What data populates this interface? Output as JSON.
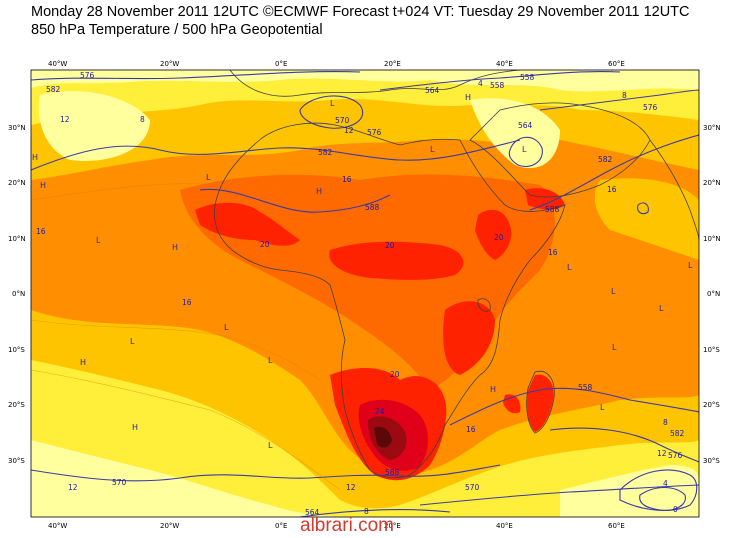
{
  "header": {
    "line1": "Monday 28 November 2011 12UTC ©ECMWF Forecast t+024 VT: Tuesday 29 November 2011 12UTC",
    "line2": "850 hPa Temperature / 500 hPa Geopotential"
  },
  "axes": {
    "top_lon": [
      "40°W",
      "20°W",
      "0°E",
      "20°E",
      "40°E",
      "60°E"
    ],
    "bottom_lon": [
      "40°W",
      "20°W",
      "0°E",
      "20°E",
      "40°E",
      "60°E"
    ],
    "lat": [
      "30°N",
      "20°N",
      "10°N",
      "0°N",
      "10°S",
      "20°S",
      "30°S"
    ]
  },
  "contour_labels": {
    "geopotential": [
      "576",
      "582",
      "564",
      "558",
      "570",
      "576",
      "582",
      "588",
      "588",
      "558",
      "582",
      "576",
      "564",
      "588",
      "570",
      "558",
      "582",
      "576",
      "564",
      "570"
    ],
    "temperature": [
      "12",
      "8",
      "4",
      "8",
      "12",
      "16",
      "20",
      "16",
      "20",
      "16",
      "20",
      "24",
      "20",
      "16",
      "12",
      "8",
      "16",
      "12",
      "8",
      "4",
      "0",
      "12",
      "16"
    ]
  },
  "pressure_markers": {
    "high": "H",
    "low": "L"
  },
  "colors": {
    "pale_yellow": "#ffff9e",
    "yellow": "#ffee3a",
    "gold": "#ffc400",
    "orange": "#ff8f00",
    "dark_orange": "#ff6a00",
    "red": "#ff2200",
    "crimson": "#e0001a",
    "maroon": "#9a0a10",
    "dark_maroon": "#5a0808",
    "contour": "#3a3aaa",
    "coast": "#404040"
  },
  "watermark": "albrari.com"
}
